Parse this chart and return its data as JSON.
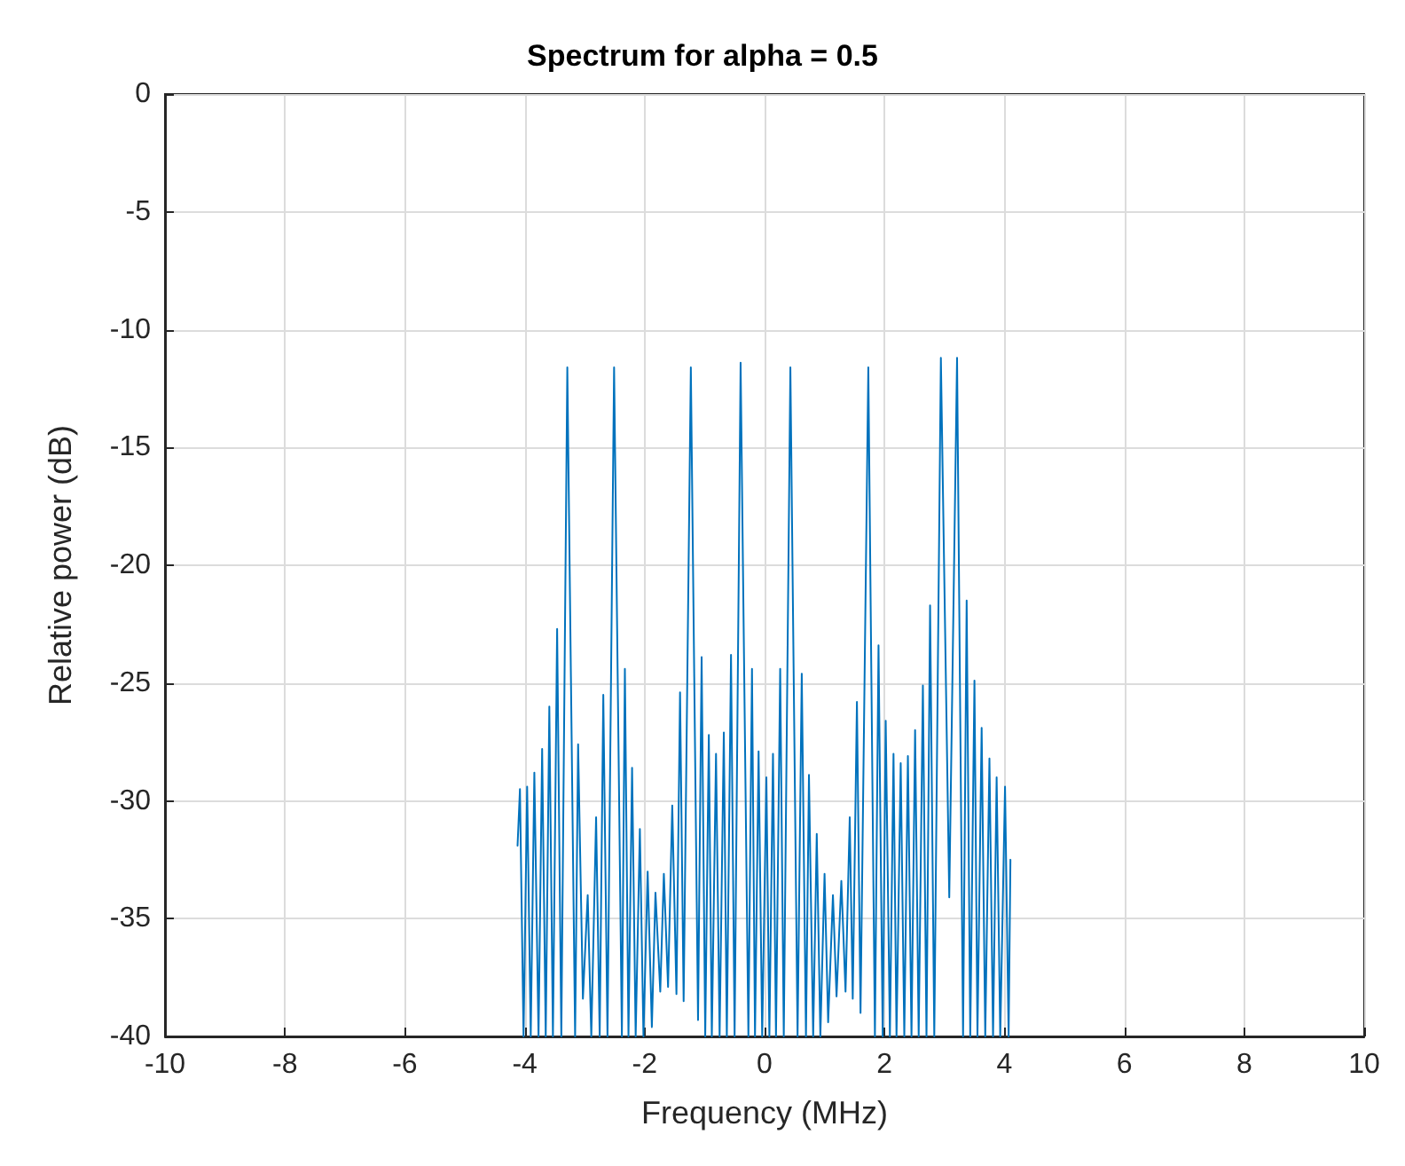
{
  "chart_data": {
    "type": "line",
    "title": "Spectrum for alpha = 0.5",
    "xlabel": "Frequency (MHz)",
    "ylabel": "Relative power (dB)",
    "xlim": [
      -10,
      10
    ],
    "xticks": [
      -10,
      -8,
      -6,
      -4,
      -2,
      0,
      2,
      4,
      6,
      8,
      10
    ],
    "ylim": [
      -40,
      0
    ],
    "yticks": [
      -40,
      -35,
      -30,
      -25,
      -20,
      -15,
      -10,
      -5,
      0
    ],
    "grid": true,
    "marker": "none",
    "line_style": "solid",
    "series": [
      {
        "color": "#0072bd",
        "x": [
          -4.12,
          -4.08,
          -4.02,
          -3.96,
          -3.9,
          -3.84,
          -3.77,
          -3.71,
          -3.65,
          -3.59,
          -3.53,
          -3.46,
          -3.39,
          -3.29,
          -3.16,
          -3.11,
          -3.03,
          -2.95,
          -2.89,
          -2.81,
          -2.75,
          -2.69,
          -2.62,
          -2.51,
          -2.38,
          -2.33,
          -2.27,
          -2.21,
          -2.15,
          -2.08,
          -2.02,
          -1.95,
          -1.88,
          -1.82,
          -1.74,
          -1.68,
          -1.61,
          -1.54,
          -1.47,
          -1.41,
          -1.35,
          -1.23,
          -1.11,
          -1.05,
          -0.99,
          -0.93,
          -0.88,
          -0.81,
          -0.75,
          -0.68,
          -0.63,
          -0.56,
          -0.5,
          -0.4,
          -0.27,
          -0.21,
          -0.16,
          -0.1,
          -0.04,
          0.03,
          0.08,
          0.14,
          0.19,
          0.26,
          0.32,
          0.43,
          0.55,
          0.62,
          0.69,
          0.74,
          0.81,
          0.87,
          0.93,
          1.0,
          1.06,
          1.14,
          1.2,
          1.28,
          1.35,
          1.42,
          1.47,
          1.54,
          1.6,
          1.73,
          1.84,
          1.9,
          1.97,
          2.02,
          2.09,
          2.15,
          2.2,
          2.27,
          2.33,
          2.39,
          2.45,
          2.51,
          2.57,
          2.64,
          2.7,
          2.76,
          2.83,
          2.94,
          3.08,
          3.21,
          3.31,
          3.37,
          3.43,
          3.5,
          3.55,
          3.62,
          3.68,
          3.75,
          3.81,
          3.87,
          3.93,
          4.01,
          4.07,
          4.1
        ],
        "values": [
          -31.9,
          -29.5,
          -40,
          -29.4,
          -40,
          -28.8,
          -40,
          -27.8,
          -40,
          -26.0,
          -40,
          -22.7,
          -40,
          -11.6,
          -40,
          -27.6,
          -38.4,
          -34.0,
          -40,
          -30.7,
          -40,
          -25.5,
          -40,
          -11.6,
          -40,
          -24.4,
          -40,
          -28.6,
          -40,
          -31.2,
          -40,
          -33.0,
          -39.6,
          -33.9,
          -38.1,
          -33.1,
          -37.9,
          -30.2,
          -38.2,
          -25.4,
          -38.5,
          -11.6,
          -39.3,
          -23.9,
          -40,
          -27.2,
          -40,
          -28.0,
          -40,
          -27.1,
          -40,
          -23.8,
          -40,
          -11.4,
          -40,
          -24.4,
          -40,
          -27.9,
          -40,
          -29.0,
          -40,
          -28.0,
          -40,
          -24.4,
          -40,
          -11.6,
          -40,
          -24.6,
          -40,
          -28.9,
          -40,
          -31.4,
          -40,
          -33.1,
          -39.4,
          -34.0,
          -38.3,
          -33.4,
          -38.1,
          -30.7,
          -38.4,
          -25.8,
          -39.0,
          -11.6,
          -40,
          -23.4,
          -40,
          -26.6,
          -40,
          -28.0,
          -40,
          -28.4,
          -40,
          -28.1,
          -40,
          -27.0,
          -40,
          -25.1,
          -40,
          -21.7,
          -40,
          -11.2,
          -34.1,
          -11.2,
          -40,
          -21.5,
          -40,
          -24.9,
          -40,
          -26.9,
          -40,
          -28.2,
          -40,
          -29.0,
          -40,
          -29.4,
          -40,
          -32.5
        ]
      }
    ]
  }
}
